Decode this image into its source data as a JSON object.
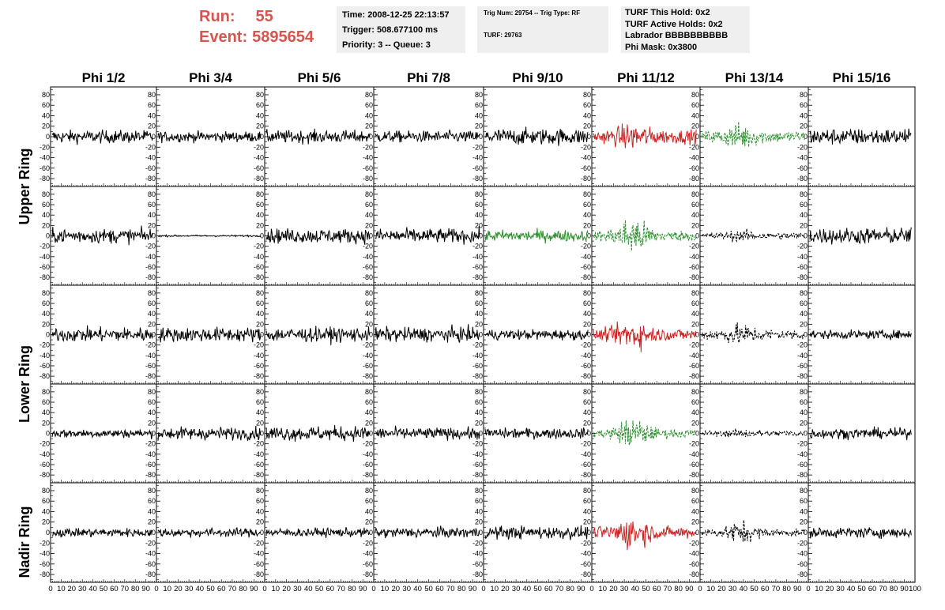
{
  "header": {
    "run_label": "Run:",
    "run_value": "55",
    "event_label": "Event:",
    "event_value": "5895654"
  },
  "info_time": {
    "time": "Time: 2008-12-25 22:13:57",
    "trigger": "Trigger: 508.677100 ms",
    "priority": "Priority: 3 -- Queue: 3"
  },
  "info_trig": {
    "trig": "Trig Num: 29754 -- Trig Type: RF",
    "turf": "TURF: 29763"
  },
  "info_turf": {
    "hold": "TURF This Hold: 0x2",
    "active": "TURF Active Holds: 0x2",
    "labrador": "Labrador BBBBBBBBBB",
    "phimask": "Phi Mask: 0x3800"
  },
  "colors": {
    "red": "#d9534f",
    "normal": "#000000",
    "triggered_red": "#cc2222",
    "triggered_green": "#2a8f2a"
  },
  "chart_data": {
    "type": "line",
    "columns": [
      "Phi 1/2",
      "Phi 3/4",
      "Phi 5/6",
      "Phi 7/8",
      "Phi 9/10",
      "Phi 11/12",
      "Phi 13/14",
      "Phi 15/16"
    ],
    "ring_labels": [
      "Upper Ring",
      "Lower Ring",
      "Nadir Ring"
    ],
    "rows": 5,
    "xlim": [
      0,
      100
    ],
    "ylim": [
      -95,
      95
    ],
    "yticks": [
      -80,
      -60,
      -40,
      -20,
      0,
      20,
      40,
      60,
      80
    ],
    "xticks": [
      0,
      10,
      20,
      30,
      40,
      50,
      60,
      70,
      80,
      90,
      100
    ],
    "traces": [
      [
        {
          "c": "black",
          "a": 22,
          "d": false
        },
        {
          "c": "black",
          "a": 18,
          "d": false
        },
        {
          "c": "black",
          "a": 22,
          "d": false
        },
        {
          "c": "black",
          "a": 20,
          "d": false
        },
        {
          "c": "black",
          "a": 28,
          "d": false
        },
        {
          "c": "red",
          "a": 24,
          "b": 48,
          "d": false
        },
        {
          "c": "green",
          "a": 20,
          "b": 48,
          "d": true
        },
        {
          "c": "black",
          "a": 28,
          "d": false
        }
      ],
      [
        {
          "c": "black",
          "a": 25,
          "d": false
        },
        {
          "c": "black",
          "a": 3,
          "d": false
        },
        {
          "c": "black",
          "a": 25,
          "d": false
        },
        {
          "c": "black",
          "a": 25,
          "d": false
        },
        {
          "c": "green",
          "a": 20,
          "d": false
        },
        {
          "c": "green",
          "a": 18,
          "b": 70,
          "d": true
        },
        {
          "c": "black",
          "a": 12,
          "b": 20,
          "d": true
        },
        {
          "c": "black",
          "a": 28,
          "d": false
        }
      ],
      [
        {
          "c": "black",
          "a": 25,
          "d": false
        },
        {
          "c": "black",
          "a": 25,
          "d": false
        },
        {
          "c": "black",
          "a": 25,
          "d": false
        },
        {
          "c": "black",
          "a": 25,
          "d": false
        },
        {
          "c": "black",
          "a": 18,
          "d": false
        },
        {
          "c": "red",
          "a": 20,
          "b": 55,
          "d": false
        },
        {
          "c": "black",
          "a": 18,
          "b": 38,
          "d": true
        },
        {
          "c": "black",
          "a": 15,
          "d": false
        }
      ],
      [
        {
          "c": "black",
          "a": 15,
          "d": false
        },
        {
          "c": "black",
          "a": 22,
          "d": false
        },
        {
          "c": "black",
          "a": 25,
          "d": false
        },
        {
          "c": "black",
          "a": 20,
          "d": false
        },
        {
          "c": "black",
          "a": 18,
          "d": false
        },
        {
          "c": "green",
          "a": 15,
          "b": 55,
          "d": true
        },
        {
          "c": "black",
          "a": 10,
          "b": 15,
          "d": true
        },
        {
          "c": "black",
          "a": 18,
          "d": false
        }
      ],
      [
        {
          "c": "black",
          "a": 15,
          "d": false
        },
        {
          "c": "black",
          "a": 15,
          "d": false
        },
        {
          "c": "black",
          "a": 15,
          "d": false
        },
        {
          "c": "black",
          "a": 18,
          "d": false
        },
        {
          "c": "black",
          "a": 22,
          "d": false
        },
        {
          "c": "red",
          "a": 20,
          "b": 60,
          "d": false
        },
        {
          "c": "black",
          "a": 12,
          "b": 40,
          "d": true
        },
        {
          "c": "black",
          "a": 18,
          "d": false
        }
      ]
    ]
  }
}
